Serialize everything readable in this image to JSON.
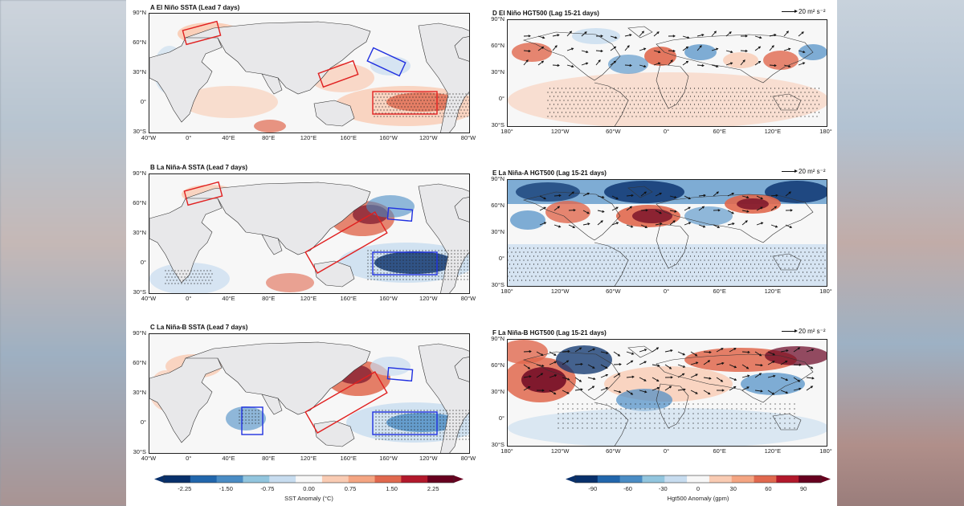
{
  "panels": [
    {
      "id": "A",
      "title": "A El Niño SSTA (Lead 7 days)",
      "kind": "sst",
      "scheme": "A",
      "arrow_label": ""
    },
    {
      "id": "B",
      "title": "B La Niña-A SSTA (Lead 7 days)",
      "kind": "sst",
      "scheme": "B",
      "arrow_label": ""
    },
    {
      "id": "C",
      "title": "C La Niña-B SSTA (Lead 7 days)",
      "kind": "sst",
      "scheme": "C",
      "arrow_label": ""
    },
    {
      "id": "D",
      "title": "D El Niño HGT500 (Lag 15-21 days)",
      "kind": "hgt",
      "scheme": "D",
      "arrow_label": "20 m² s⁻²"
    },
    {
      "id": "E",
      "title": "E La Niña-A HGT500 (Lag 15-21 days)",
      "kind": "hgt",
      "scheme": "E",
      "arrow_label": "20 m² s⁻²"
    },
    {
      "id": "F",
      "title": "F La Niña-B HGT500 (Lag 15-21 days)",
      "kind": "hgt",
      "scheme": "F",
      "arrow_label": "20 m² s⁻²"
    }
  ],
  "sst_axes": {
    "lat_labels": [
      "90°N",
      "60°N",
      "30°N",
      "0°",
      "30°S"
    ],
    "lon_labels": [
      "40°W",
      "0°",
      "40°E",
      "80°E",
      "120°E",
      "160°E",
      "160°W",
      "120°W",
      "80°W"
    ]
  },
  "hgt_axes": {
    "lat_labels": [
      "90°N",
      "60°N",
      "30°N",
      "0°",
      "30°S"
    ],
    "lon_labels": [
      "180°",
      "120°W",
      "60°W",
      "0°",
      "60°E",
      "120°E",
      "180°"
    ]
  },
  "colorbars": {
    "sst": {
      "label": "SST Anomaly (°C)",
      "ticks": [
        "-2.25",
        "-1.50",
        "-0.75",
        "0.00",
        "0.75",
        "1.50",
        "2.25"
      ]
    },
    "hgt": {
      "label": "Hgt500 Anomaly (gpm)",
      "ticks": [
        "-90",
        "-60",
        "-30",
        "0",
        "30",
        "60",
        "90"
      ]
    }
  },
  "colors": {
    "neg_strong": "#08306b",
    "neg_mid": "#4a8cc4",
    "neg_light": "#c7dcef",
    "neutral": "#f7f7f7",
    "pos_light": "#f9cbb3",
    "pos_mid": "#e0684e",
    "pos_strong": "#67001f",
    "land": "#e8e8ea",
    "box_red": "#e02020",
    "box_blue": "#2030e0"
  }
}
